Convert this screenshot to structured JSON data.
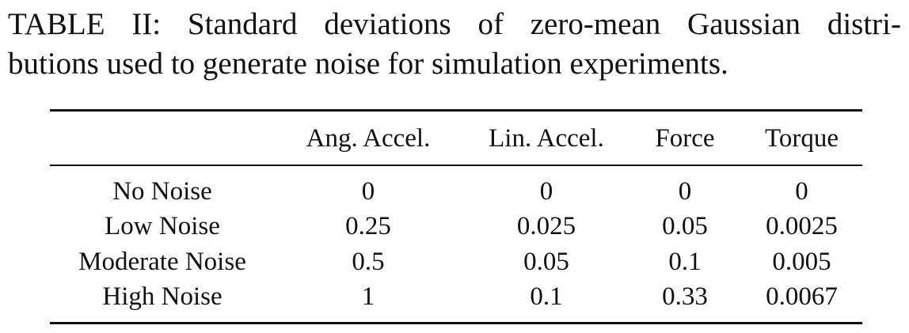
{
  "caption": {
    "line1": "TABLE II: Standard deviations of zero-mean Gaussian distri-",
    "line2": "butions used to generate noise for simulation experiments."
  },
  "table": {
    "headers": [
      "",
      "Ang. Accel.",
      "Lin. Accel.",
      "Force",
      "Torque"
    ],
    "rows": [
      [
        "No Noise",
        "0",
        "0",
        "0",
        "0"
      ],
      [
        "Low Noise",
        "0.25",
        "0.025",
        "0.05",
        "0.0025"
      ],
      [
        "Moderate Noise",
        "0.5",
        "0.05",
        "0.1",
        "0.005"
      ],
      [
        "High Noise",
        "1",
        "0.1",
        "0.33",
        "0.0067"
      ]
    ]
  }
}
